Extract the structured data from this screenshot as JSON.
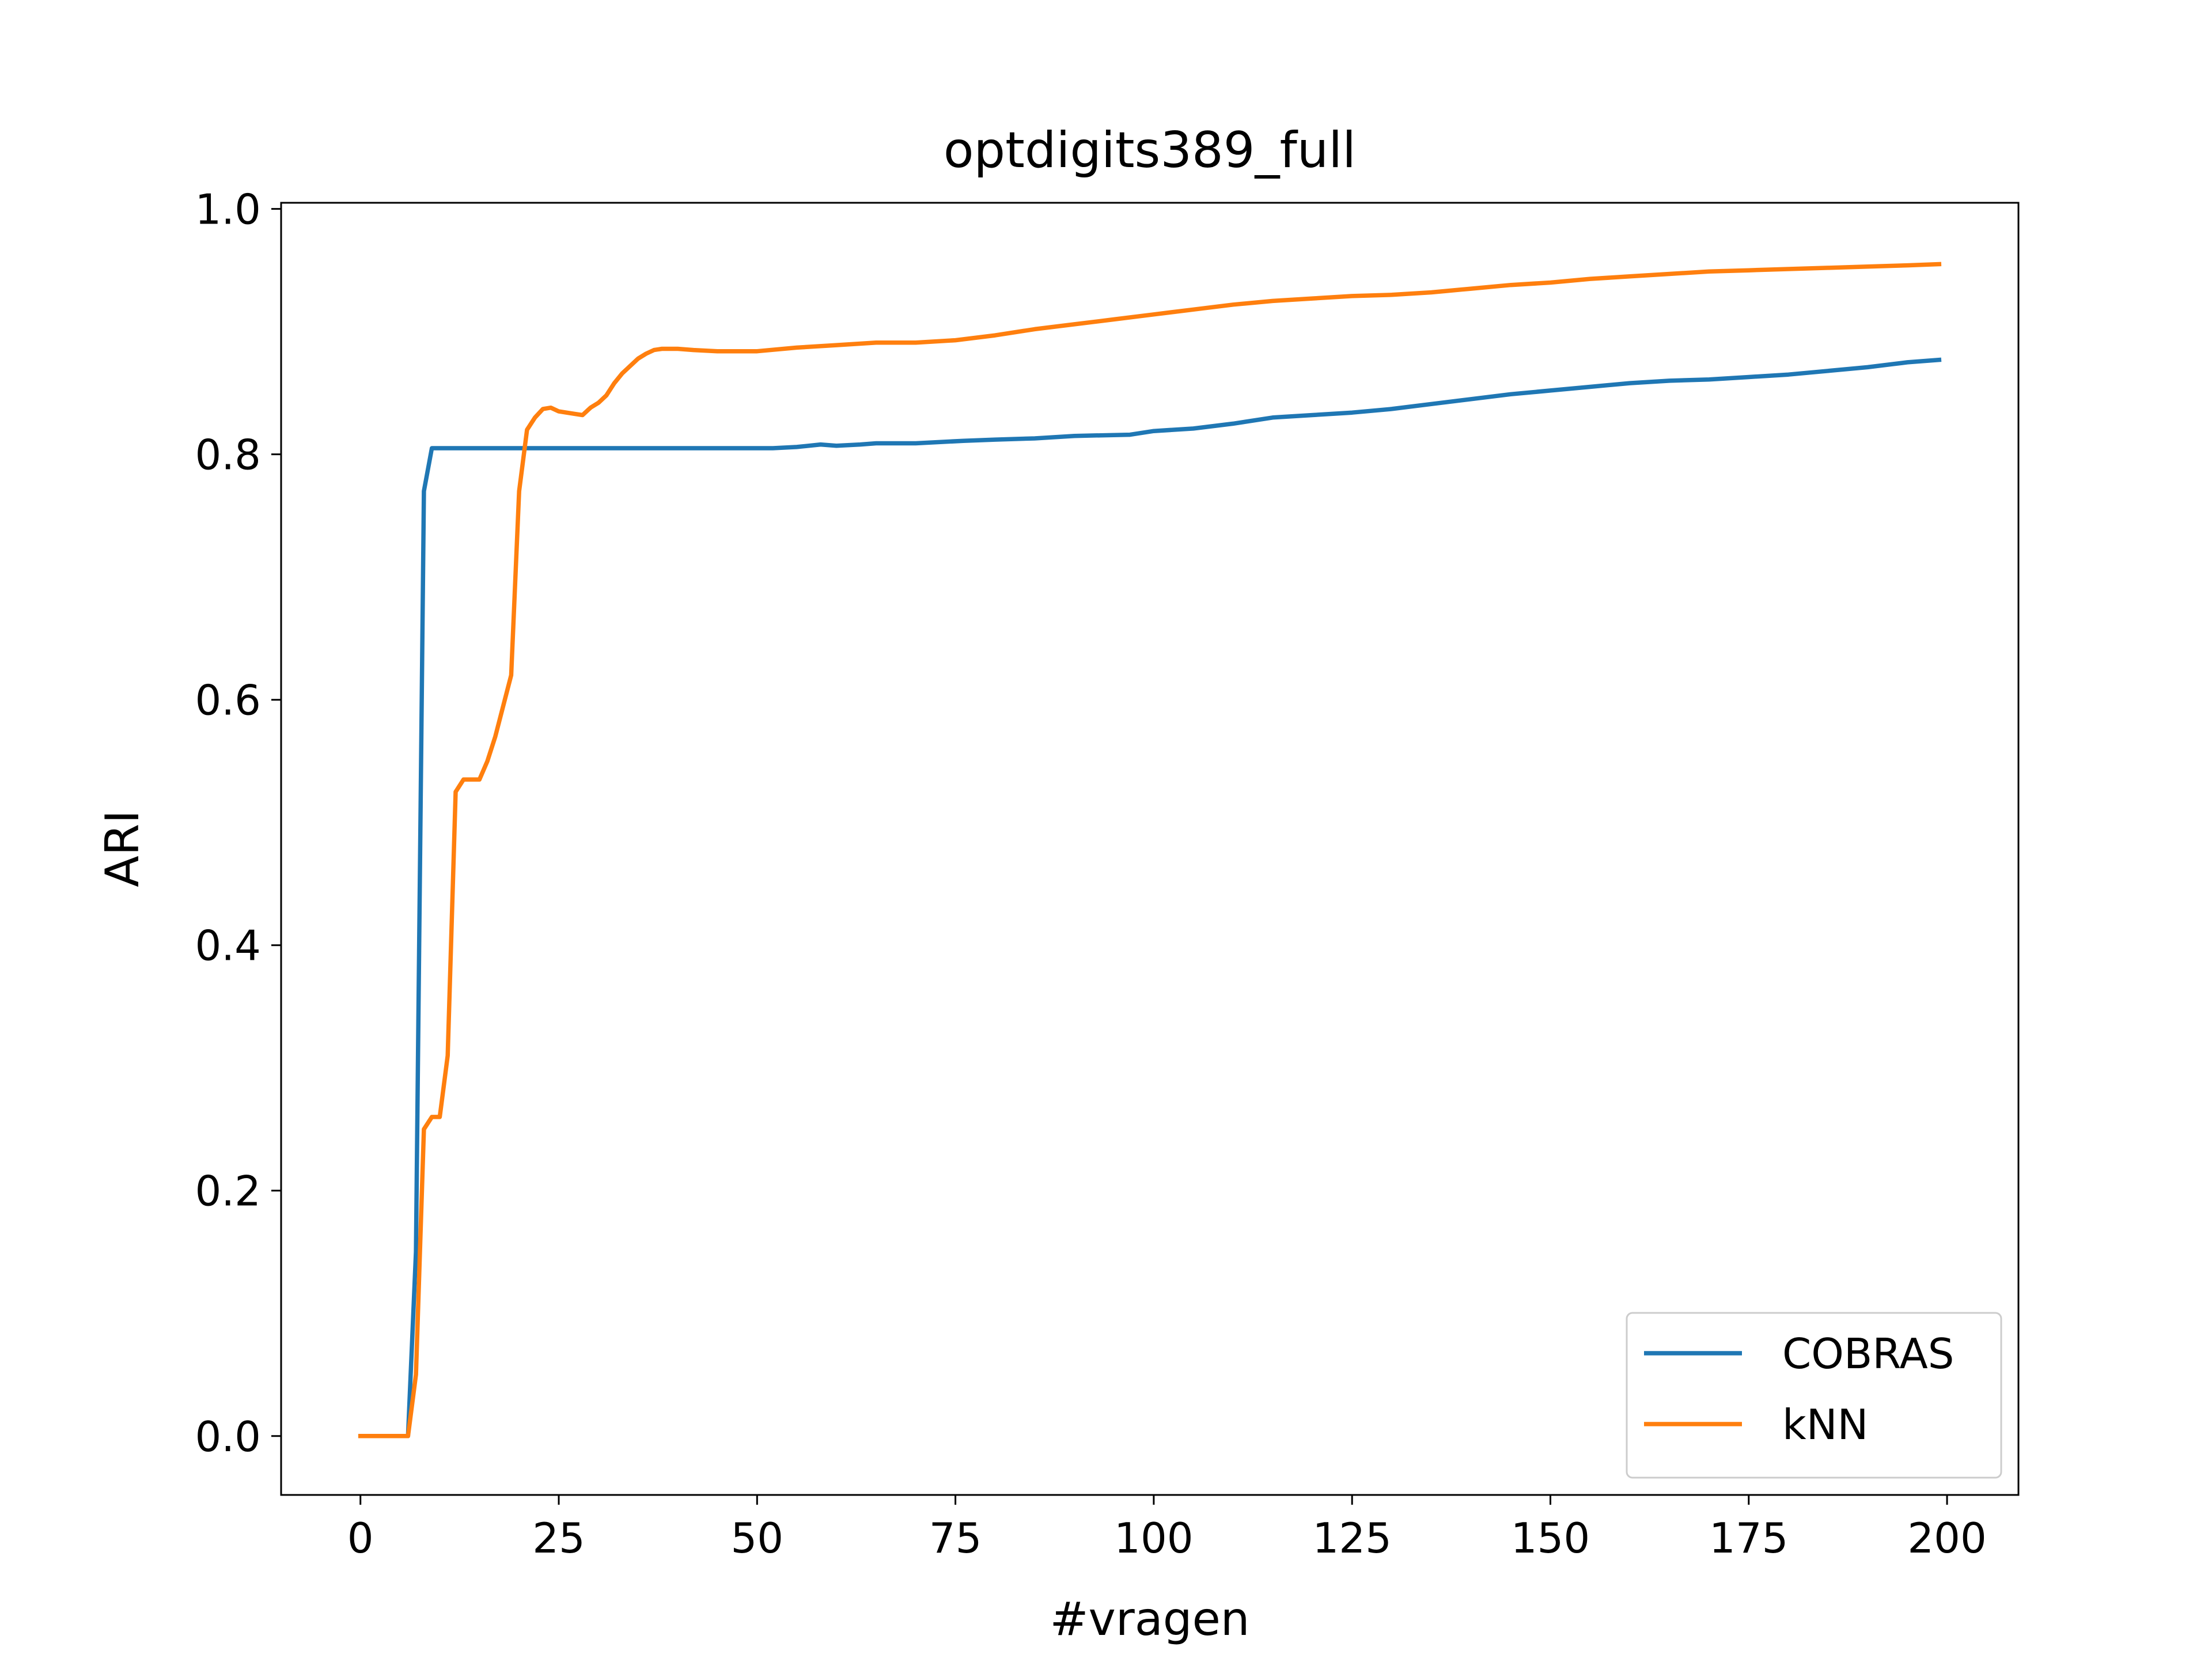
{
  "chart_data": {
    "type": "line",
    "title": "optdigits389_full",
    "xlabel": "#vragen",
    "ylabel": "ARI",
    "xlim": [
      -10,
      209
    ],
    "ylim": [
      -0.048,
      1.005
    ],
    "xticks": [
      0,
      25,
      50,
      75,
      100,
      125,
      150,
      175,
      200
    ],
    "xtick_labels": [
      "0",
      "25",
      "50",
      "75",
      "100",
      "125",
      "150",
      "175",
      "200"
    ],
    "yticks": [
      0.0,
      0.2,
      0.4,
      0.6,
      0.8,
      1.0
    ],
    "ytick_labels": [
      "0.0",
      "0.2",
      "0.4",
      "0.6",
      "0.8",
      "1.0"
    ],
    "grid": false,
    "legend_position": "lower-right",
    "series": [
      {
        "name": "COBRAS",
        "color": "#1f77b4",
        "x": [
          0,
          6,
          7,
          8,
          9,
          10,
          20,
          30,
          40,
          52,
          55,
          58,
          60,
          63,
          65,
          70,
          76,
          80,
          85,
          90,
          97,
          100,
          105,
          110,
          115,
          120,
          125,
          130,
          135,
          140,
          145,
          150,
          155,
          160,
          165,
          170,
          175,
          180,
          185,
          190,
          195,
          199
        ],
        "y": [
          0.0,
          0.0,
          0.15,
          0.77,
          0.805,
          0.805,
          0.805,
          0.805,
          0.805,
          0.805,
          0.806,
          0.808,
          0.807,
          0.808,
          0.809,
          0.809,
          0.811,
          0.812,
          0.813,
          0.815,
          0.816,
          0.819,
          0.821,
          0.825,
          0.83,
          0.832,
          0.834,
          0.837,
          0.841,
          0.845,
          0.849,
          0.852,
          0.855,
          0.858,
          0.86,
          0.861,
          0.863,
          0.865,
          0.868,
          0.871,
          0.875,
          0.877
        ]
      },
      {
        "name": "kNN",
        "color": "#ff7f0e",
        "x": [
          0,
          6,
          7,
          8,
          9,
          10,
          11,
          12,
          13,
          15,
          16,
          17,
          18,
          19,
          20,
          21,
          22,
          23,
          24,
          25,
          27,
          28,
          29,
          30,
          31,
          32,
          33,
          34,
          35,
          36,
          37,
          38,
          40,
          42,
          45,
          50,
          55,
          60,
          65,
          70,
          75,
          80,
          85,
          90,
          95,
          100,
          105,
          110,
          115,
          120,
          125,
          130,
          135,
          140,
          145,
          150,
          155,
          160,
          165,
          170,
          175,
          180,
          185,
          190,
          195,
          199
        ],
        "y": [
          0.0,
          0.0,
          0.05,
          0.25,
          0.26,
          0.26,
          0.31,
          0.525,
          0.535,
          0.535,
          0.55,
          0.57,
          0.595,
          0.62,
          0.77,
          0.82,
          0.83,
          0.837,
          0.838,
          0.835,
          0.833,
          0.832,
          0.838,
          0.842,
          0.848,
          0.858,
          0.866,
          0.872,
          0.878,
          0.882,
          0.885,
          0.886,
          0.886,
          0.885,
          0.884,
          0.884,
          0.887,
          0.889,
          0.891,
          0.891,
          0.893,
          0.897,
          0.902,
          0.906,
          0.91,
          0.914,
          0.918,
          0.922,
          0.925,
          0.927,
          0.929,
          0.93,
          0.932,
          0.935,
          0.938,
          0.94,
          0.943,
          0.945,
          0.947,
          0.949,
          0.95,
          0.951,
          0.952,
          0.953,
          0.954,
          0.955
        ]
      }
    ]
  }
}
